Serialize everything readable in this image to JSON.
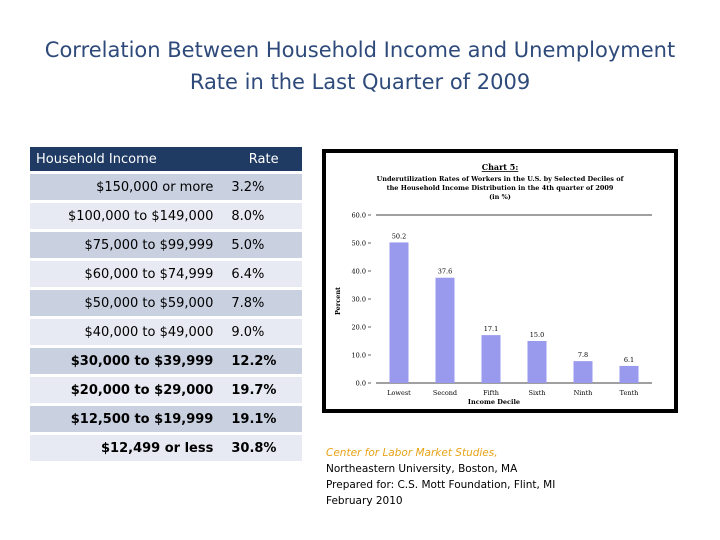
{
  "slide_title": "Correlation Between Household Income and Unemployment  Rate in the Last Quarter of 2009",
  "table": {
    "headers": [
      "Household Income",
      "Rate"
    ],
    "rows": [
      {
        "income": "$150,000 or more",
        "rate": "3.2%"
      },
      {
        "income": "$100,000 to $149,000",
        "rate": "8.0%"
      },
      {
        "income": "$75,000 to $99,999",
        "rate": "5.0%"
      },
      {
        "income": "$60,000 to $74,999",
        "rate": "6.4%"
      },
      {
        "income": "$50,000 to $59,000",
        "rate": "7.8%"
      },
      {
        "income": "$40,000 to $49,000",
        "rate": "9.0%"
      },
      {
        "income": "$30,000 to $39,999",
        "rate": "12.2%"
      },
      {
        "income": "$20,000 to $29,000",
        "rate": "19.7%"
      },
      {
        "income": "$12,500 to $19,999",
        "rate": "19.1%"
      },
      {
        "income": "$12,499 or less",
        "rate": "30.8%"
      }
    ]
  },
  "chart_data": {
    "type": "bar",
    "chart_label": "Chart 5:",
    "title": "Underutilization Rates of Workers in the U.S. by Selected Deciles of the Household Income Distribution in the 4th quarter of 2009",
    "subtitle": "(in %)",
    "categories": [
      "Lowest",
      "Second",
      "Fifth",
      "Sixth",
      "Ninth",
      "Tenth"
    ],
    "values": [
      50.2,
      37.6,
      17.1,
      15.0,
      7.8,
      6.1
    ],
    "value_labels": [
      "50.2",
      "37.6",
      "17.1",
      "15.0",
      "7.8",
      "6.1"
    ],
    "xlabel": "Income Decile",
    "ylabel": "Percent",
    "ylim": [
      0,
      60
    ],
    "yticks": [
      "0.0",
      "10.0",
      "20.0",
      "30.0",
      "40.0",
      "50.0",
      "60.0"
    ],
    "bar_color": "#9999ee",
    "grid": false
  },
  "source_note": {
    "line1": "Center for Labor Market Studies,",
    "line2": "Northeastern University, Boston, MA",
    "line3": "Prepared for: C.S. Mott Foundation, Flint, MI",
    "line4": "February 2010"
  }
}
